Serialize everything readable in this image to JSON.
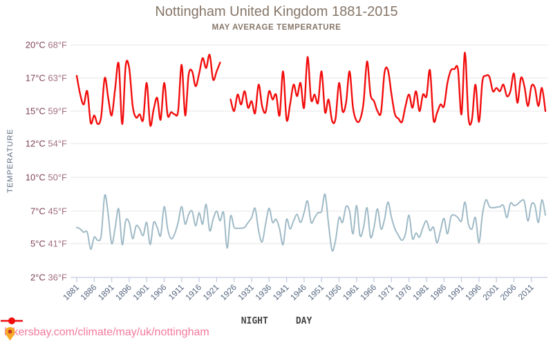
{
  "title": "Nottingham United Kingdom 1881-2015",
  "subtitle": "MAY AVERAGE TEMPERATURE",
  "y_axis": {
    "label": "TEMPERATURE",
    "ticks": [
      {
        "c": "20°C",
        "f": "68°F"
      },
      {
        "c": "17°C",
        "f": "63°F"
      },
      {
        "c": "15°C",
        "f": "59°F"
      },
      {
        "c": "12°C",
        "f": "54°F"
      },
      {
        "c": "10°C",
        "f": "50°F"
      },
      {
        "c": "7°C",
        "f": "45°F"
      },
      {
        "c": "5°C",
        "f": "41°F"
      },
      {
        "c": "2°C",
        "f": "36°F"
      }
    ]
  },
  "x_axis": {
    "tick_years": [
      1881,
      1886,
      1891,
      1896,
      1901,
      1906,
      1911,
      1916,
      1921,
      1926,
      1931,
      1936,
      1941,
      1946,
      1951,
      1956,
      1961,
      1966,
      1971,
      1976,
      1981,
      1986,
      1991,
      1996,
      2001,
      2006,
      2011
    ]
  },
  "legend": [
    {
      "label": "NIGHT",
      "color": "#9fbac6"
    },
    {
      "label": "DAY",
      "color": "#f20d0d"
    }
  ],
  "footer": {
    "url": "hikersbay.com/climate/may/uk/nottingham",
    "pin_colors": {
      "body": "#f9a825",
      "dot": "#c0392b"
    }
  },
  "colors": {
    "title": "#857567",
    "y_tick_c": "#7d3f56",
    "y_tick_f": "#a06d80",
    "y_axis_label": "#5b6b80",
    "x_tick_label": "#54657e",
    "axis_line": "#c3cbe0",
    "gridline": "#e6e6e6",
    "url_pink": "#f4799f"
  },
  "chart_data": {
    "type": "line",
    "title": "Nottingham United Kingdom 1881-2015",
    "subtitle": "MAY AVERAGE TEMPERATURE",
    "xlabel": "",
    "ylabel": "TEMPERATURE",
    "x_range": [
      1881,
      2015
    ],
    "x_tick_step": 5,
    "y_ticks_celsius": [
      20,
      17,
      15,
      12,
      10,
      7,
      5,
      2
    ],
    "y_ticks_fahrenheit": [
      68,
      63,
      59,
      54,
      50,
      45,
      41,
      36
    ],
    "y_scale_note": "non-linear: listed celsius ticks are equally spaced",
    "grid": true,
    "legend_position": "bottom",
    "series": [
      {
        "name": "NIGHT",
        "color": "#9fbac6",
        "unit": "°C",
        "values": [
          6.0,
          5.9,
          5.7,
          5.7,
          4.5,
          5.4,
          5.2,
          5.5,
          8.4,
          6.8,
          5.0,
          6.0,
          7.2,
          4.9,
          6.4,
          6.3,
          5.3,
          6.1,
          5.9,
          5.5,
          6.3,
          4.9,
          6.3,
          6.0,
          5.5,
          7.4,
          5.9,
          5.3,
          5.6,
          6.3,
          7.4,
          6.2,
          6.8,
          7.0,
          6.1,
          6.9,
          6.2,
          7.6,
          5.8,
          6.5,
          7.0,
          6.4,
          6.9,
          4.6,
          6.7,
          6.0,
          5.95,
          5.95,
          6.0,
          6.3,
          6.6,
          7.25,
          5.8,
          5.1,
          6.2,
          7.25,
          6.3,
          6.5,
          5.9,
          4.9,
          6.5,
          5.9,
          6.4,
          6.8,
          6.3,
          6.9,
          7.9,
          6.3,
          6.6,
          6.9,
          7.0,
          8.5,
          6.2,
          4.4,
          5.2,
          6.6,
          6.3,
          7.4,
          7.0,
          5.6,
          7.5,
          5.5,
          6.0,
          7.3,
          5.4,
          6.0,
          7.2,
          5.9,
          6.5,
          7.8,
          6.6,
          5.9,
          5.5,
          5.2,
          5.6,
          6.75,
          5.3,
          5.65,
          5.4,
          6.0,
          6.4,
          5.8,
          6.0,
          5.05,
          5.8,
          6.55,
          5.6,
          6.65,
          6.75,
          6.6,
          6.4,
          7.8,
          6.2,
          5.9,
          6.6,
          5.05,
          6.8,
          8.0,
          7.4,
          7.3,
          7.35,
          7.4,
          7.5,
          6.6,
          7.7,
          7.5,
          7.6,
          7.9,
          7.85,
          6.4,
          7.6,
          7.5,
          6.3,
          8.0,
          6.75
        ]
      },
      {
        "name": "DAY",
        "color": "#f20d0d",
        "unit": "°C",
        "values": [
          17.2,
          16.0,
          15.4,
          16.2,
          13.9,
          14.6,
          13.8,
          14.5,
          17.0,
          15.8,
          14.6,
          16.4,
          18.3,
          13.8,
          18.1,
          17.9,
          15.3,
          14.4,
          14.7,
          14.2,
          16.7,
          13.7,
          15.1,
          15.8,
          14.2,
          16.7,
          14.6,
          14.9,
          14.7,
          15.0,
          18.2,
          14.6,
          17.3,
          17.6,
          16.5,
          17.4,
          18.8,
          17.9,
          19.1,
          16.9,
          17.6,
          18.4,
          null,
          null,
          15.7,
          15.0,
          16.0,
          15.4,
          16.2,
          15.2,
          15.6,
          14.8,
          16.6,
          15.3,
          14.9,
          16.2,
          15.7,
          16.0,
          14.6,
          17.6,
          14.2,
          15.4,
          16.6,
          15.9,
          16.7,
          15.2,
          18.9,
          15.7,
          16.0,
          15.5,
          17.6,
          14.9,
          15.7,
          14.1,
          14.3,
          16.7,
          15.0,
          15.5,
          17.6,
          15.2,
          14.1,
          14.2,
          15.5,
          18.5,
          16.0,
          15.6,
          15.0,
          14.9,
          17.5,
          17.7,
          16.0,
          14.7,
          14.3,
          14.0,
          15.3,
          16.0,
          15.2,
          16.2,
          15.0,
          16.0,
          15.9,
          17.7,
          14.2,
          14.8,
          15.4,
          15.3,
          16.7,
          17.7,
          17.8,
          17.8,
          14.7,
          19.3,
          14.4,
          14.2,
          16.6,
          14.0,
          16.8,
          17.2,
          17.1,
          16.2,
          16.4,
          16.2,
          16.6,
          15.9,
          16.2,
          17.4,
          15.5,
          17.0,
          16.5,
          15.3,
          16.5,
          16.4,
          15.3,
          16.4,
          15.0
        ]
      }
    ]
  }
}
